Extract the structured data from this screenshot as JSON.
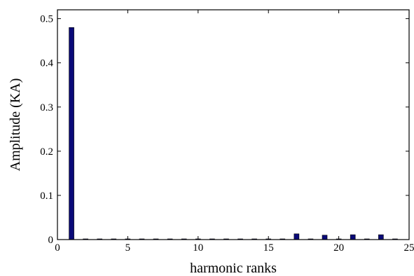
{
  "chart_data": {
    "type": "bar",
    "title": "",
    "xlabel": "harmonic ranks",
    "ylabel": "Amplitude (KA)",
    "xlim": [
      0,
      25
    ],
    "ylim": [
      0,
      0.52
    ],
    "x_ticks": [
      0,
      5,
      10,
      15,
      20,
      25
    ],
    "y_ticks": [
      0,
      0.1,
      0.2,
      0.3,
      0.4,
      0.5
    ],
    "grid": false,
    "legend": "none",
    "colors": {
      "bar": "#0a0a78",
      "axis": "#000000",
      "background": "#ffffff"
    },
    "x": [
      1,
      2,
      3,
      4,
      5,
      6,
      7,
      8,
      9,
      10,
      11,
      12,
      13,
      14,
      15,
      16,
      17,
      18,
      19,
      20,
      21,
      22,
      23,
      24
    ],
    "values": [
      0.48,
      0.0005,
      0.0005,
      0.0005,
      0.0005,
      0.0005,
      0.0005,
      0.0005,
      0.0005,
      0.0005,
      0.0005,
      0.0005,
      0.0005,
      0.0005,
      0.0005,
      0.0005,
      0.013,
      0.0005,
      0.01,
      0.0005,
      0.011,
      0.0005,
      0.011,
      0.0005
    ]
  }
}
